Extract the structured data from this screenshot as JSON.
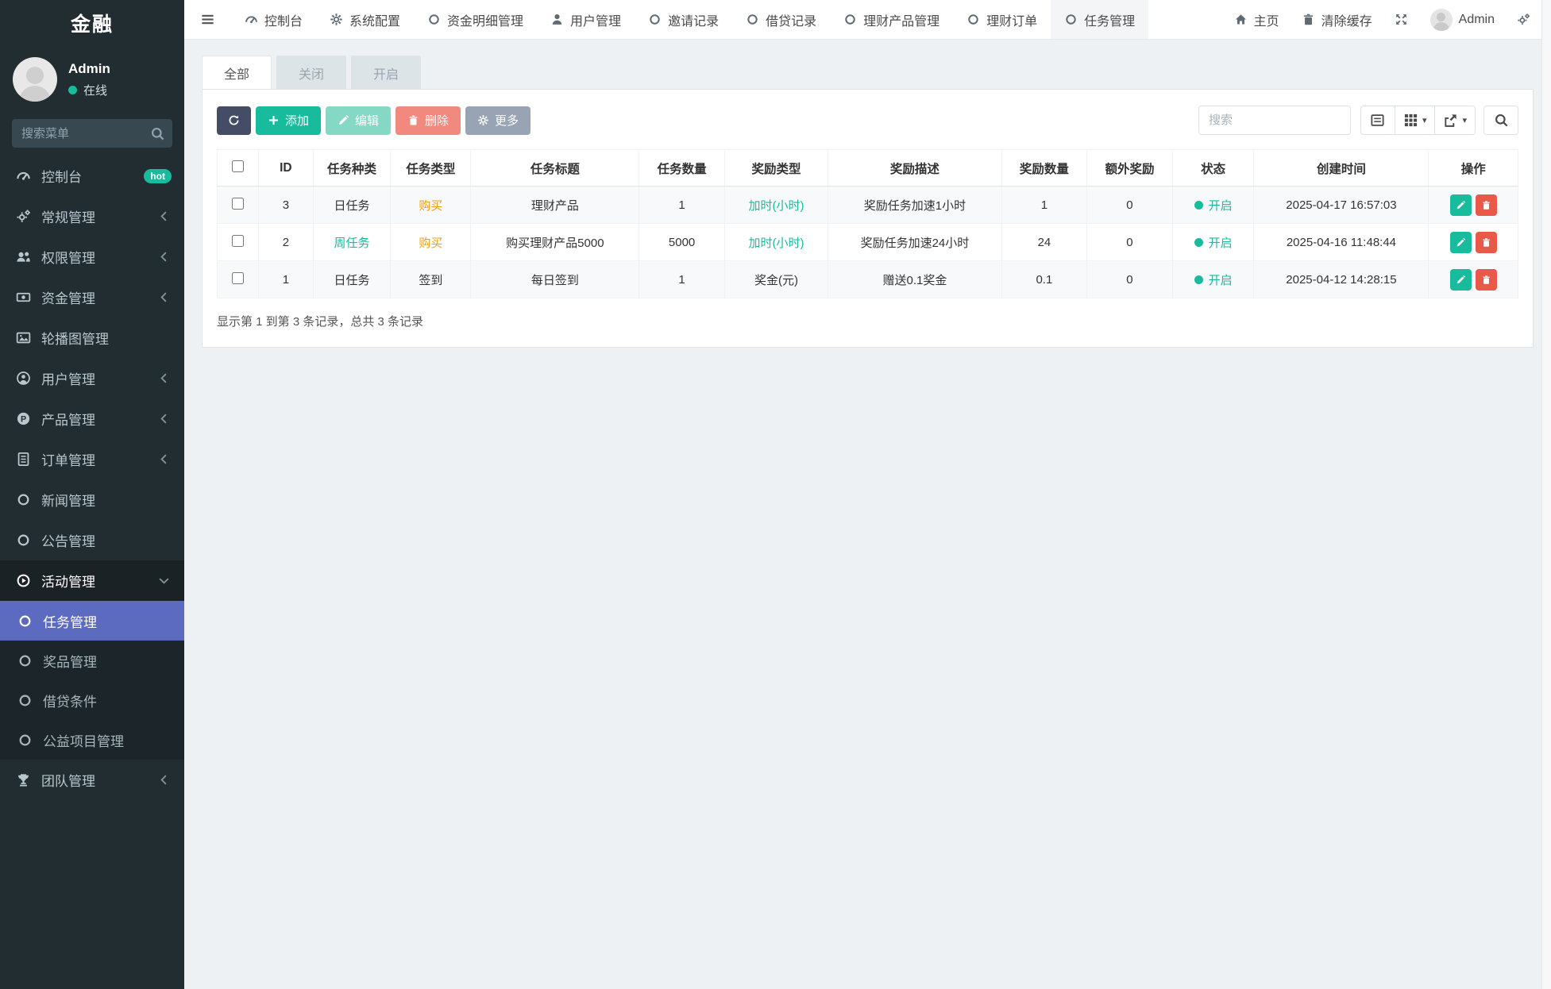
{
  "app": {
    "brand": "金融"
  },
  "user": {
    "name": "Admin",
    "status_label": "在线"
  },
  "colors": {
    "sidebar_bg": "#222d32",
    "active_item_bg": "#5c6bc0",
    "accent_teal": "#18bc9c",
    "accent_orange": "#f39c12",
    "danger_red": "#e74c3c",
    "dark_button": "#454d66"
  },
  "sidebar": {
    "search_placeholder": "搜索菜单",
    "items": [
      {
        "label": "控制台",
        "icon": "tachometer-icon",
        "badge": "hot"
      },
      {
        "label": "常规管理",
        "icon": "gears-icon",
        "chevron": "left"
      },
      {
        "label": "权限管理",
        "icon": "users-icon",
        "chevron": "left"
      },
      {
        "label": "资金管理",
        "icon": "money-icon",
        "chevron": "left"
      },
      {
        "label": "轮播图管理",
        "icon": "image-icon"
      },
      {
        "label": "用户管理",
        "icon": "user-circle-icon",
        "chevron": "left"
      },
      {
        "label": "产品管理",
        "icon": "product-icon",
        "chevron": "left"
      },
      {
        "label": "订单管理",
        "icon": "order-icon",
        "chevron": "left"
      },
      {
        "label": "新闻管理",
        "icon": "circle-icon"
      },
      {
        "label": "公告管理",
        "icon": "circle-icon"
      },
      {
        "label": "活动管理",
        "icon": "play-circle-icon",
        "chevron": "down",
        "expanded": true,
        "children": [
          {
            "label": "任务管理",
            "icon": "circle-icon",
            "active": true
          },
          {
            "label": "奖品管理",
            "icon": "circle-icon"
          },
          {
            "label": "借贷条件",
            "icon": "circle-icon"
          },
          {
            "label": "公益项目管理",
            "icon": "circle-icon"
          }
        ]
      },
      {
        "label": "团队管理",
        "icon": "trophy-icon",
        "chevron": "left"
      }
    ]
  },
  "topnav": {
    "tabs": [
      {
        "label": "控制台",
        "icon": "tachometer-icon"
      },
      {
        "label": "系统配置",
        "icon": "gear-icon"
      },
      {
        "label": "资金明细管理",
        "icon": "circle-icon"
      },
      {
        "label": "用户管理",
        "icon": "user-icon"
      },
      {
        "label": "邀请记录",
        "icon": "circle-icon"
      },
      {
        "label": "借贷记录",
        "icon": "circle-icon"
      },
      {
        "label": "理财产品管理",
        "icon": "circle-icon"
      },
      {
        "label": "理财订单",
        "icon": "circle-icon"
      },
      {
        "label": "任务管理",
        "icon": "circle-icon",
        "active": true
      }
    ],
    "home_label": "主页",
    "clear_cache_label": "清除缓存",
    "admin_label": "Admin"
  },
  "filter_tabs": [
    {
      "label": "全部",
      "active": true
    },
    {
      "label": "关闭"
    },
    {
      "label": "开启"
    }
  ],
  "toolbar": {
    "add_label": "添加",
    "edit_label": "编辑",
    "delete_label": "删除",
    "more_label": "更多",
    "search_placeholder": "搜索"
  },
  "table": {
    "columns": [
      {
        "label": "",
        "key": "check"
      },
      {
        "label": "ID",
        "key": "id"
      },
      {
        "label": "任务种类",
        "key": "kind"
      },
      {
        "label": "任务类型",
        "key": "type"
      },
      {
        "label": "任务标题",
        "key": "title"
      },
      {
        "label": "任务数量",
        "key": "qty"
      },
      {
        "label": "奖励类型",
        "key": "rtype"
      },
      {
        "label": "奖励描述",
        "key": "rdesc"
      },
      {
        "label": "奖励数量",
        "key": "rqty"
      },
      {
        "label": "额外奖励",
        "key": "extra"
      },
      {
        "label": "状态",
        "key": "status"
      },
      {
        "label": "创建时间",
        "key": "created"
      },
      {
        "label": "操作",
        "key": "actions"
      }
    ],
    "rows": [
      {
        "cells": [
          {
            "t": "3"
          },
          {
            "t": "日任务"
          },
          {
            "t": "购买",
            "c": "orange"
          },
          {
            "t": "理财产品"
          },
          {
            "t": "1"
          },
          {
            "t": "加时(小时)",
            "c": "teal"
          },
          {
            "t": "奖励任务加速1小时"
          },
          {
            "t": "1"
          },
          {
            "t": "0"
          },
          {
            "t": "开启",
            "c": "teal",
            "dot": true
          },
          {
            "t": "2025-04-17 16:57:03"
          }
        ]
      },
      {
        "cells": [
          {
            "t": "2"
          },
          {
            "t": "周任务",
            "c": "teal"
          },
          {
            "t": "购买",
            "c": "orange"
          },
          {
            "t": "购买理财产品5000"
          },
          {
            "t": "5000"
          },
          {
            "t": "加时(小时)",
            "c": "teal"
          },
          {
            "t": "奖励任务加速24小时"
          },
          {
            "t": "24"
          },
          {
            "t": "0"
          },
          {
            "t": "开启",
            "c": "teal",
            "dot": true
          },
          {
            "t": "2025-04-16 11:48:44"
          }
        ]
      },
      {
        "cells": [
          {
            "t": "1"
          },
          {
            "t": "日任务"
          },
          {
            "t": "签到"
          },
          {
            "t": "每日签到"
          },
          {
            "t": "1"
          },
          {
            "t": "奖金(元)"
          },
          {
            "t": "赠送0.1奖金"
          },
          {
            "t": "0.1"
          },
          {
            "t": "0"
          },
          {
            "t": "开启",
            "c": "teal",
            "dot": true
          },
          {
            "t": "2025-04-12 14:28:15"
          }
        ]
      }
    ]
  },
  "footer": {
    "summary": "显示第 1 到第 3 条记录，总共 3 条记录"
  }
}
